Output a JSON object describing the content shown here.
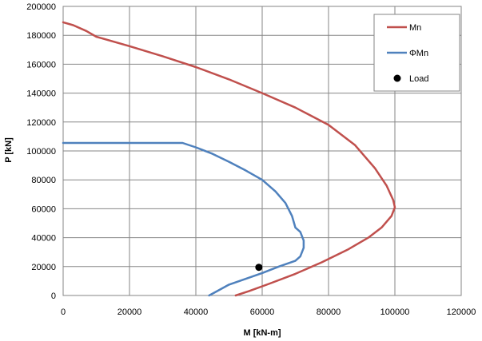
{
  "chart_data": {
    "type": "line",
    "title": "",
    "xlabel": "M [kN-m]",
    "ylabel": "P [kN]",
    "xlim": [
      0,
      120000
    ],
    "ylim": [
      0,
      200000
    ],
    "xticks": [
      0,
      20000,
      40000,
      60000,
      80000,
      100000,
      120000
    ],
    "yticks": [
      0,
      20000,
      40000,
      60000,
      80000,
      100000,
      120000,
      140000,
      160000,
      180000,
      200000
    ],
    "xtick_labels": [
      "0",
      "20000",
      "40000",
      "60000",
      "80000",
      "100000",
      "120000"
    ],
    "ytick_labels": [
      "0",
      "20000",
      "40000",
      "60000",
      "80000",
      "100000",
      "120000",
      "140000",
      "160000",
      "180000",
      "200000"
    ],
    "grid": true,
    "legend": "top-right",
    "series": [
      {
        "name": "Mn",
        "color": "#C0504D",
        "kind": "line",
        "points": [
          [
            0,
            189000
          ],
          [
            3000,
            187000
          ],
          [
            7000,
            183000
          ],
          [
            10000,
            179000
          ],
          [
            20000,
            172500
          ],
          [
            30000,
            165500
          ],
          [
            40000,
            158000
          ],
          [
            50000,
            149500
          ],
          [
            60000,
            140000
          ],
          [
            70000,
            130000
          ],
          [
            80000,
            118000
          ],
          [
            88000,
            104000
          ],
          [
            94000,
            88000
          ],
          [
            97500,
            76000
          ],
          [
            99500,
            66000
          ],
          [
            100000,
            61000
          ],
          [
            99000,
            55000
          ],
          [
            96000,
            47000
          ],
          [
            92000,
            40000
          ],
          [
            86000,
            32000
          ],
          [
            78000,
            23000
          ],
          [
            70000,
            15000
          ],
          [
            62000,
            8000
          ],
          [
            56000,
            3000
          ],
          [
            52000,
            0
          ]
        ]
      },
      {
        "name": "ΦMn",
        "color": "#4F81BD",
        "kind": "line",
        "points": [
          [
            0,
            105500
          ],
          [
            36000,
            105500
          ],
          [
            40000,
            102500
          ],
          [
            45000,
            98000
          ],
          [
            50000,
            92500
          ],
          [
            55000,
            86500
          ],
          [
            60000,
            80000
          ],
          [
            64000,
            72000
          ],
          [
            67000,
            64000
          ],
          [
            69000,
            55000
          ],
          [
            70000,
            47000
          ],
          [
            71500,
            44000
          ],
          [
            72500,
            38000
          ],
          [
            72500,
            33000
          ],
          [
            71500,
            27000
          ],
          [
            70000,
            24000
          ],
          [
            65000,
            20000
          ],
          [
            60000,
            15500
          ],
          [
            55000,
            11500
          ],
          [
            50000,
            7500
          ],
          [
            46000,
            2500
          ],
          [
            44000,
            0
          ]
        ]
      },
      {
        "name": "Load",
        "color": "#000000",
        "kind": "marker",
        "points": [
          [
            59000,
            19500
          ]
        ]
      }
    ]
  }
}
